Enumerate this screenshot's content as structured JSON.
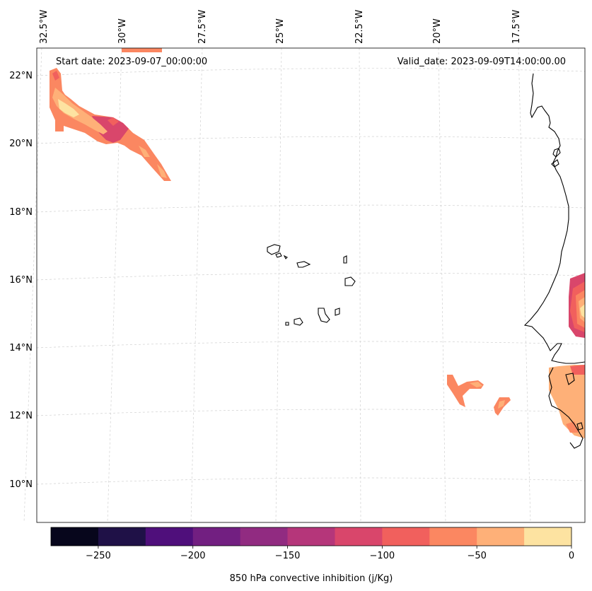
{
  "header": {
    "start_date": "Start date: 2023-09-07_00:00:00",
    "valid_date": "Valid_date: 2023-09-09T14:00:00.00"
  },
  "longitude_labels": [
    "32.5°W",
    "30°W",
    "27.5°W",
    "25°W",
    "22.5°W",
    "20°W",
    "17.5°W"
  ],
  "latitude_labels": [
    "22°N",
    "20°N",
    "18°N",
    "16°N",
    "14°N",
    "12°N",
    "10°N"
  ],
  "colorbar": {
    "label": "850 hPa convective inhibition (j/Kg)",
    "tick_labels": [
      "−250",
      "−200",
      "−150",
      "−100",
      "−50",
      "0"
    ],
    "colors": [
      "#07061c",
      "#1f1147",
      "#4f0f7b",
      "#721f81",
      "#912b81",
      "#b5367a",
      "#d9466b",
      "#f1605d",
      "#fb8761",
      "#feb078",
      "#fde3a1"
    ]
  },
  "colors": {
    "coastline": "#000000",
    "gridline": "#cccccc",
    "cin_light": "#fde3a1",
    "cin_medium": "#feb078",
    "cin_orange": "#fb8761",
    "cin_red": "#f1605d",
    "cin_crimson": "#d9466b",
    "cin_magenta": "#b5367a"
  }
}
